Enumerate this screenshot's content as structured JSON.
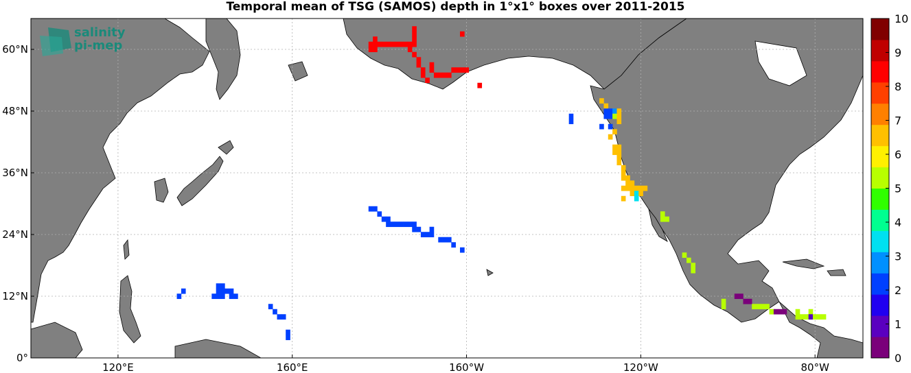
{
  "title": "Temporal mean of TSG (SAMOS) depth in 1°x1° boxes over 2011-2015",
  "logo": {
    "line1": "salinity",
    "line2": "pi-mep"
  },
  "lat_ticks": [
    {
      "deg": 0,
      "text": "0°"
    },
    {
      "deg": 12,
      "text": "12°N"
    },
    {
      "deg": 24,
      "text": "24°N"
    },
    {
      "deg": 36,
      "text": "36°N"
    },
    {
      "deg": 48,
      "text": "48°N"
    },
    {
      "deg": 60,
      "text": "60°N"
    }
  ],
  "lon_ticks": [
    {
      "deg": 120,
      "text": "120°E"
    },
    {
      "deg": 160,
      "text": "160°E"
    },
    {
      "deg": 200,
      "text": "160°W"
    },
    {
      "deg": 240,
      "text": "120°W"
    },
    {
      "deg": 280,
      "text": "80°W"
    }
  ],
  "colorbar": {
    "min": 0,
    "max": 10,
    "ticks": [
      "0",
      "1",
      "2",
      "3",
      "4",
      "5",
      "6",
      "7",
      "8",
      "9",
      "10"
    ],
    "colors": [
      "#7a007a",
      "#5a00c0",
      "#2000f0",
      "#0040ff",
      "#0090ff",
      "#00e0f0",
      "#00ff90",
      "#30ff00",
      "#b8ff00",
      "#fff000",
      "#ffc000",
      "#ff8000",
      "#ff4000",
      "#ff0000",
      "#c00000",
      "#800000"
    ]
  },
  "colors": {
    "land": "#808080",
    "ocean": "#ffffff",
    "grid": "#b0b0b0"
  },
  "map_data": {
    "lon_range": [
      100,
      291
    ],
    "lat_range": [
      0,
      66
    ],
    "cells": [
      {
        "lon": 199,
        "lat": 63,
        "v": 8.2
      },
      {
        "lon": 178,
        "lat": 61,
        "v": 8.2
      },
      {
        "lon": 179,
        "lat": 61,
        "v": 8.2
      },
      {
        "lon": 180,
        "lat": 61,
        "v": 8.2
      },
      {
        "lon": 181,
        "lat": 61,
        "v": 8.2
      },
      {
        "lon": 182,
        "lat": 61,
        "v": 8.2
      },
      {
        "lon": 183,
        "lat": 61,
        "v": 8.2
      },
      {
        "lon": 184,
        "lat": 61,
        "v": 8.2
      },
      {
        "lon": 185,
        "lat": 61,
        "v": 8.2
      },
      {
        "lon": 186,
        "lat": 61,
        "v": 8.2
      },
      {
        "lon": 187,
        "lat": 61,
        "v": 8.2
      },
      {
        "lon": 188,
        "lat": 61,
        "v": 8.2
      },
      {
        "lon": 188,
        "lat": 63,
        "v": 8.2
      },
      {
        "lon": 188,
        "lat": 64,
        "v": 8.2
      },
      {
        "lon": 188,
        "lat": 62,
        "v": 8.2
      },
      {
        "lon": 179,
        "lat": 62,
        "v": 8.2
      },
      {
        "lon": 179,
        "lat": 60,
        "v": 8.2
      },
      {
        "lon": 178,
        "lat": 60,
        "v": 8.2
      },
      {
        "lon": 187,
        "lat": 60,
        "v": 8.2
      },
      {
        "lon": 188,
        "lat": 59,
        "v": 8.2
      },
      {
        "lon": 189,
        "lat": 58,
        "v": 8.2
      },
      {
        "lon": 189,
        "lat": 57,
        "v": 8.2
      },
      {
        "lon": 190,
        "lat": 56,
        "v": 8.2
      },
      {
        "lon": 190,
        "lat": 55,
        "v": 8.2
      },
      {
        "lon": 191,
        "lat": 54,
        "v": 8.2
      },
      {
        "lon": 192,
        "lat": 56,
        "v": 8.2
      },
      {
        "lon": 192,
        "lat": 57,
        "v": 8.2
      },
      {
        "lon": 193,
        "lat": 55,
        "v": 8.2
      },
      {
        "lon": 194,
        "lat": 55,
        "v": 8.2
      },
      {
        "lon": 195,
        "lat": 55,
        "v": 8.2
      },
      {
        "lon": 196,
        "lat": 55,
        "v": 8.2
      },
      {
        "lon": 197,
        "lat": 56,
        "v": 8.2
      },
      {
        "lon": 198,
        "lat": 56,
        "v": 8.2
      },
      {
        "lon": 199,
        "lat": 56,
        "v": 8.2
      },
      {
        "lon": 200,
        "lat": 56,
        "v": 8.2
      },
      {
        "lon": 203,
        "lat": 53,
        "v": 8.2
      },
      {
        "lon": 231,
        "lat": 50,
        "v": 6.8
      },
      {
        "lon": 232,
        "lat": 49,
        "v": 6.8
      },
      {
        "lon": 232,
        "lat": 48,
        "v": 2.0
      },
      {
        "lon": 233,
        "lat": 48,
        "v": 2.0
      },
      {
        "lon": 233,
        "lat": 47,
        "v": 2.0
      },
      {
        "lon": 232,
        "lat": 47,
        "v": 2.0
      },
      {
        "lon": 234,
        "lat": 48,
        "v": 3.0
      },
      {
        "lon": 234,
        "lat": 47,
        "v": 5.0
      },
      {
        "lon": 235,
        "lat": 48,
        "v": 6.8
      },
      {
        "lon": 235,
        "lat": 47,
        "v": 6.8
      },
      {
        "lon": 235,
        "lat": 46,
        "v": 6.8
      },
      {
        "lon": 234,
        "lat": 44,
        "v": 6.8
      },
      {
        "lon": 233,
        "lat": 43,
        "v": 6.8
      },
      {
        "lon": 233,
        "lat": 45,
        "v": 2.0
      },
      {
        "lon": 231,
        "lat": 45,
        "v": 2.0
      },
      {
        "lon": 224,
        "lat": 47,
        "v": 2.0
      },
      {
        "lon": 224,
        "lat": 46,
        "v": 2.0
      },
      {
        "lon": 234,
        "lat": 41,
        "v": 6.8
      },
      {
        "lon": 235,
        "lat": 41,
        "v": 6.8
      },
      {
        "lon": 234,
        "lat": 40,
        "v": 6.8
      },
      {
        "lon": 235,
        "lat": 40,
        "v": 6.8
      },
      {
        "lon": 235,
        "lat": 39,
        "v": 6.8
      },
      {
        "lon": 235,
        "lat": 38,
        "v": 6.8
      },
      {
        "lon": 236,
        "lat": 37,
        "v": 6.8
      },
      {
        "lon": 236,
        "lat": 36,
        "v": 6.8
      },
      {
        "lon": 236,
        "lat": 35,
        "v": 6.8
      },
      {
        "lon": 237,
        "lat": 35,
        "v": 6.8
      },
      {
        "lon": 237,
        "lat": 34,
        "v": 6.8
      },
      {
        "lon": 238,
        "lat": 34,
        "v": 6.8
      },
      {
        "lon": 236,
        "lat": 33,
        "v": 6.8
      },
      {
        "lon": 237,
        "lat": 33,
        "v": 6.8
      },
      {
        "lon": 238,
        "lat": 33,
        "v": 6.8
      },
      {
        "lon": 239,
        "lat": 33,
        "v": 6.8
      },
      {
        "lon": 240,
        "lat": 33,
        "v": 6.8
      },
      {
        "lon": 238,
        "lat": 32,
        "v": 6.8
      },
      {
        "lon": 239,
        "lat": 32,
        "v": 3.5
      },
      {
        "lon": 240,
        "lat": 32,
        "v": 6.8
      },
      {
        "lon": 241,
        "lat": 33,
        "v": 6.8
      },
      {
        "lon": 236,
        "lat": 31,
        "v": 6.8
      },
      {
        "lon": 239,
        "lat": 31,
        "v": 3.5
      },
      {
        "lon": 245,
        "lat": 28,
        "v": 5.5
      },
      {
        "lon": 245,
        "lat": 27,
        "v": 5.5
      },
      {
        "lon": 246,
        "lat": 27,
        "v": 5.5
      },
      {
        "lon": 250,
        "lat": 20,
        "v": 5.5
      },
      {
        "lon": 251,
        "lat": 19,
        "v": 5.5
      },
      {
        "lon": 252,
        "lat": 18,
        "v": 5.5
      },
      {
        "lon": 252,
        "lat": 17,
        "v": 5.5
      },
      {
        "lon": 178,
        "lat": 29,
        "v": 2.0
      },
      {
        "lon": 179,
        "lat": 29,
        "v": 2.0
      },
      {
        "lon": 180,
        "lat": 28,
        "v": 2.0
      },
      {
        "lon": 181,
        "lat": 27,
        "v": 2.0
      },
      {
        "lon": 182,
        "lat": 27,
        "v": 2.0
      },
      {
        "lon": 182,
        "lat": 26,
        "v": 2.0
      },
      {
        "lon": 183,
        "lat": 26,
        "v": 2.0
      },
      {
        "lon": 184,
        "lat": 26,
        "v": 2.0
      },
      {
        "lon": 185,
        "lat": 26,
        "v": 2.0
      },
      {
        "lon": 186,
        "lat": 26,
        "v": 2.0
      },
      {
        "lon": 187,
        "lat": 26,
        "v": 2.0
      },
      {
        "lon": 188,
        "lat": 26,
        "v": 2.0
      },
      {
        "lon": 188,
        "lat": 25,
        "v": 2.0
      },
      {
        "lon": 189,
        "lat": 25,
        "v": 2.0
      },
      {
        "lon": 190,
        "lat": 24,
        "v": 2.0
      },
      {
        "lon": 191,
        "lat": 24,
        "v": 2.0
      },
      {
        "lon": 192,
        "lat": 25,
        "v": 2.0
      },
      {
        "lon": 192,
        "lat": 24,
        "v": 2.0
      },
      {
        "lon": 194,
        "lat": 23,
        "v": 2.0
      },
      {
        "lon": 195,
        "lat": 23,
        "v": 2.0
      },
      {
        "lon": 196,
        "lat": 23,
        "v": 2.0
      },
      {
        "lon": 197,
        "lat": 22,
        "v": 2.0
      },
      {
        "lon": 199,
        "lat": 21,
        "v": 2.0
      },
      {
        "lon": 143,
        "lat": 14,
        "v": 2.0
      },
      {
        "lon": 144,
        "lat": 14,
        "v": 2.0
      },
      {
        "lon": 143,
        "lat": 13,
        "v": 2.0
      },
      {
        "lon": 144,
        "lat": 13,
        "v": 2.0
      },
      {
        "lon": 145,
        "lat": 13,
        "v": 2.0
      },
      {
        "lon": 146,
        "lat": 13,
        "v": 2.0
      },
      {
        "lon": 142,
        "lat": 12,
        "v": 2.0
      },
      {
        "lon": 143,
        "lat": 12,
        "v": 2.0
      },
      {
        "lon": 144,
        "lat": 12,
        "v": 2.0
      },
      {
        "lon": 146,
        "lat": 12,
        "v": 2.0
      },
      {
        "lon": 147,
        "lat": 12,
        "v": 2.0
      },
      {
        "lon": 134,
        "lat": 12,
        "v": 2.0
      },
      {
        "lon": 135,
        "lat": 13,
        "v": 2.0
      },
      {
        "lon": 155,
        "lat": 10,
        "v": 2.0
      },
      {
        "lon": 156,
        "lat": 9,
        "v": 2.0
      },
      {
        "lon": 157,
        "lat": 8,
        "v": 2.0
      },
      {
        "lon": 158,
        "lat": 8,
        "v": 2.0
      },
      {
        "lon": 159,
        "lat": 5,
        "v": 2.0
      },
      {
        "lon": 159,
        "lat": 4,
        "v": 2.0
      },
      {
        "lon": 262,
        "lat": 12,
        "v": 0.6
      },
      {
        "lon": 263,
        "lat": 12,
        "v": 0.6
      },
      {
        "lon": 264,
        "lat": 11,
        "v": 0.6
      },
      {
        "lon": 265,
        "lat": 11,
        "v": 0.6
      },
      {
        "lon": 266,
        "lat": 10,
        "v": 5.5
      },
      {
        "lon": 267,
        "lat": 10,
        "v": 5.5
      },
      {
        "lon": 268,
        "lat": 10,
        "v": 5.5
      },
      {
        "lon": 269,
        "lat": 10,
        "v": 5.5
      },
      {
        "lon": 270,
        "lat": 9,
        "v": 5.5
      },
      {
        "lon": 271,
        "lat": 9,
        "v": 0.6
      },
      {
        "lon": 272,
        "lat": 9,
        "v": 0.6
      },
      {
        "lon": 273,
        "lat": 9,
        "v": 0.6
      },
      {
        "lon": 259,
        "lat": 11,
        "v": 5.5
      },
      {
        "lon": 259,
        "lat": 10,
        "v": 5.5
      },
      {
        "lon": 276,
        "lat": 9,
        "v": 5.5
      },
      {
        "lon": 276,
        "lat": 8,
        "v": 5.5
      },
      {
        "lon": 277,
        "lat": 8,
        "v": 5.5
      },
      {
        "lon": 278,
        "lat": 8,
        "v": 5.5
      },
      {
        "lon": 279,
        "lat": 9,
        "v": 5.5
      },
      {
        "lon": 279,
        "lat": 8,
        "v": 1.0
      },
      {
        "lon": 280,
        "lat": 8,
        "v": 5.5
      },
      {
        "lon": 281,
        "lat": 8,
        "v": 5.5
      },
      {
        "lon": 282,
        "lat": 8,
        "v": 5.5
      }
    ]
  }
}
